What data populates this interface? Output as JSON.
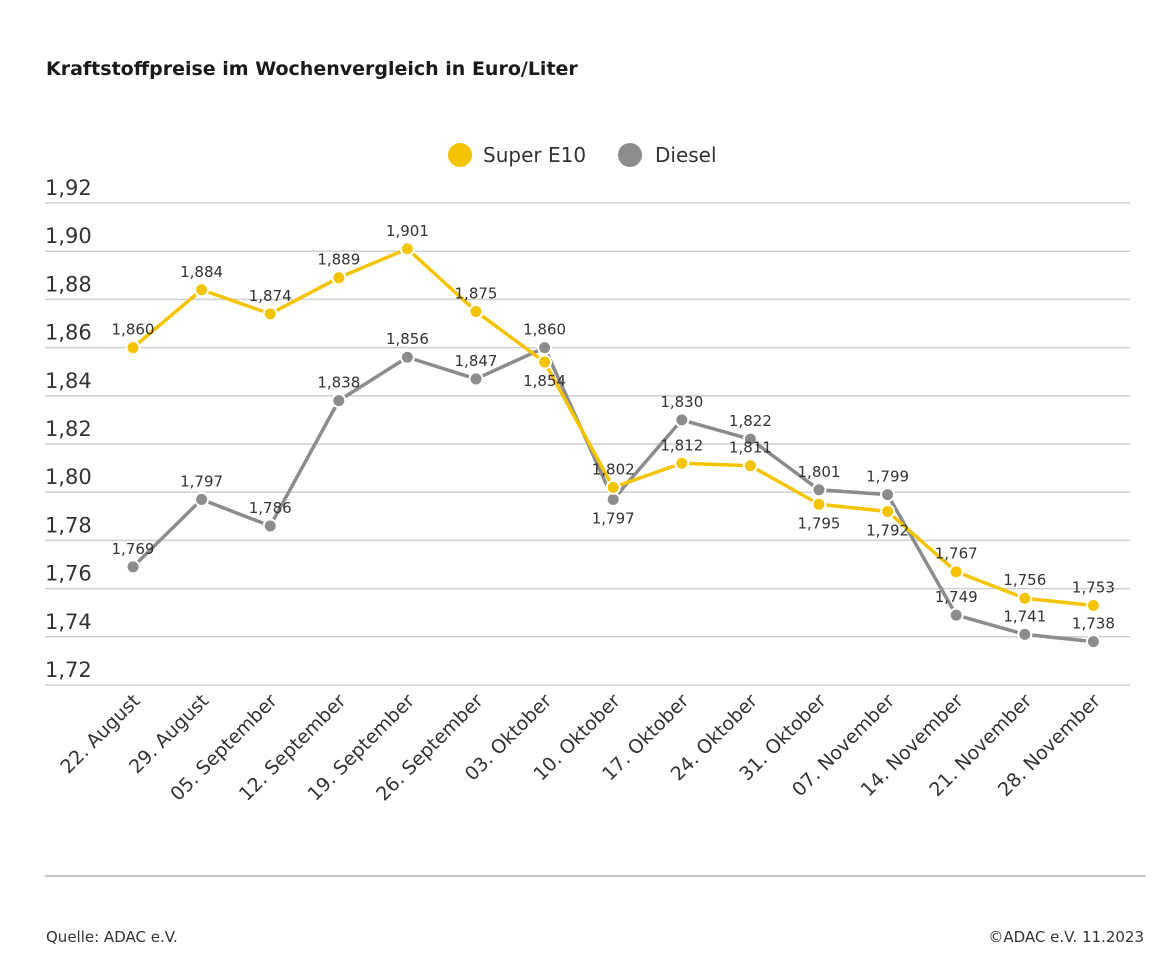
{
  "chart_data": {
    "type": "line",
    "title": "Kraftstoffpreise im Wochenvergleich in Euro/Liter",
    "xlabel": "",
    "ylabel": "",
    "categories": [
      "22. August",
      "29. August",
      "05. September",
      "12. September",
      "19. September",
      "26. September",
      "03. Oktober",
      "10. Oktober",
      "17. Oktober",
      "24. Oktober",
      "31. Oktober",
      "07. November",
      "14. November",
      "21. November",
      "28. November"
    ],
    "series": [
      {
        "name": "Super E10",
        "color": "#f5c400",
        "values": [
          1.86,
          1.884,
          1.874,
          1.889,
          1.901,
          1.875,
          1.854,
          1.802,
          1.812,
          1.811,
          1.795,
          1.792,
          1.767,
          1.756,
          1.753
        ],
        "labels": [
          "1,860",
          "1,884",
          "1,874",
          "1,889",
          "1,901",
          "1,875",
          "1,854",
          "1,802",
          "1,812",
          "1,811",
          "1,795",
          "1,792",
          "1,767",
          "1,756",
          "1,753"
        ]
      },
      {
        "name": "Diesel",
        "color": "#8c8c8c",
        "values": [
          1.769,
          1.797,
          1.786,
          1.838,
          1.856,
          1.847,
          1.86,
          1.797,
          1.83,
          1.822,
          1.801,
          1.799,
          1.749,
          1.741,
          1.738
        ],
        "labels": [
          "1,769",
          "1,797",
          "1,786",
          "1,838",
          "1,856",
          "1,847",
          "1,860",
          "1,797",
          "1,830",
          "1,822",
          "1,801",
          "1,799",
          "1,749",
          "1,741",
          "1,738"
        ]
      }
    ],
    "ylim": [
      1.72,
      1.92
    ],
    "yticks": [
      "1,92",
      "1,90",
      "1,88",
      "1,86",
      "1,84",
      "1,82",
      "1,80",
      "1,78",
      "1,76",
      "1,74",
      "1,72"
    ],
    "grid": true,
    "legend": "top-center"
  },
  "footer": {
    "source": "Quelle: ADAC e.V.",
    "copyright": "©ADAC e.V. 11.2023"
  }
}
